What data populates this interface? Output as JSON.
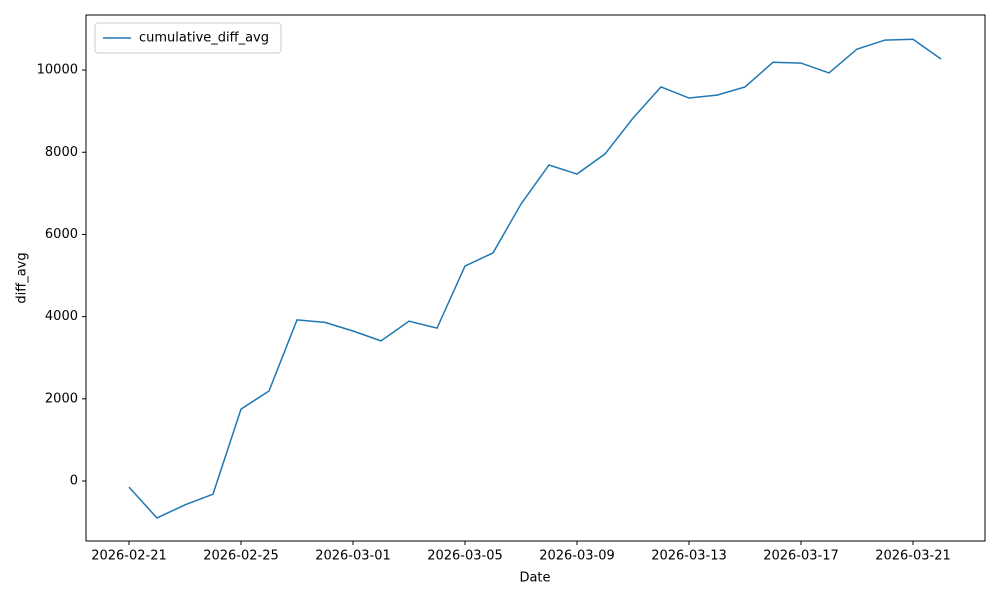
{
  "chart_data": {
    "type": "line",
    "x": [
      "2026-02-21",
      "2026-02-22",
      "2026-02-23",
      "2026-02-24",
      "2026-02-25",
      "2026-02-26",
      "2026-02-27",
      "2026-02-28",
      "2026-03-01",
      "2026-03-02",
      "2026-03-03",
      "2026-03-04",
      "2026-03-05",
      "2026-03-06",
      "2026-03-07",
      "2026-03-08",
      "2026-03-09",
      "2026-03-10",
      "2026-03-11",
      "2026-03-12",
      "2026-03-13",
      "2026-03-14",
      "2026-03-15",
      "2026-03-16",
      "2026-03-17",
      "2026-03-18",
      "2026-03-19",
      "2026-03-20",
      "2026-03-21",
      "2026-03-22"
    ],
    "series": [
      {
        "name": "cumulative_diff_avg",
        "color": "#1f77b4",
        "values": [
          -150,
          -900,
          -580,
          -320,
          1750,
          2190,
          3920,
          3860,
          3650,
          3410,
          3890,
          3720,
          5230,
          5550,
          6740,
          7690,
          7470,
          7960,
          8830,
          9590,
          9320,
          9390,
          9590,
          10190,
          10170,
          9930,
          10510,
          10730,
          10750,
          10270
        ]
      }
    ],
    "xlabel": "Date",
    "ylabel": "diff_avg",
    "xlim": [
      "2026-02-19",
      "2026-03-23"
    ],
    "xticks": [
      "2026-02-21",
      "2026-02-25",
      "2026-03-01",
      "2026-03-05",
      "2026-03-09",
      "2026-03-13",
      "2026-03-17",
      "2026-03-21"
    ],
    "ylim": [
      -1460,
      11340
    ],
    "yticks": [
      0,
      2000,
      4000,
      6000,
      8000,
      10000
    ],
    "legend": "upper left",
    "grid": false
  }
}
